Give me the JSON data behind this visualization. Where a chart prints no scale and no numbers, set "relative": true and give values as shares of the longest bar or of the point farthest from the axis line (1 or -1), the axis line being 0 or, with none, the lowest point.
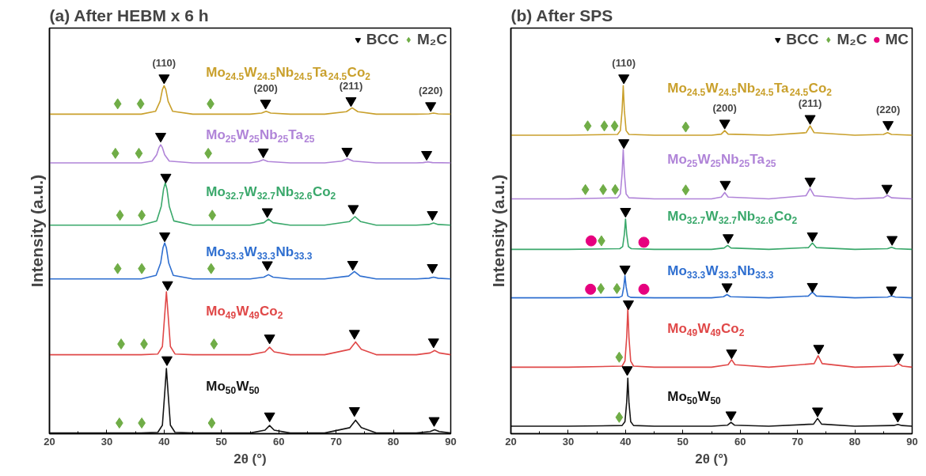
{
  "chart_data": [
    {
      "type": "line",
      "title": "(a) After HEBM x 6 h",
      "xlabel": "2θ (°)",
      "ylabel": "Intensity (a.u.)",
      "xlim": [
        20,
        90
      ],
      "xticks": [
        20,
        30,
        40,
        50,
        60,
        70,
        80,
        90
      ],
      "relative": true,
      "legend": "top right",
      "line_style": "solid",
      "annotations": [
        "(110)",
        "(200)",
        "(211)",
        "(220)"
      ],
      "series": [
        {
          "name": "Mo$_{24.5}$W$_{24.5}$Nb$_{24.5}$Ta$_{24.5}$Co$_{2}$",
          "color": "#c9a02c",
          "x": [
            20,
            30,
            36,
            38.5,
            39.3,
            39.7,
            40,
            40.3,
            40.7,
            41.5,
            45,
            55,
            57,
            57.8,
            58.6,
            62,
            68,
            71.8,
            72.8,
            73.8,
            77,
            84,
            86.2,
            87,
            87.8,
            90
          ],
          "values": [
            0.898,
            0.898,
            0.898,
            0.906,
            0.934,
            0.967,
            0.978,
            0.967,
            0.934,
            0.906,
            0.898,
            0.898,
            0.901,
            0.906,
            0.901,
            0.898,
            0.898,
            0.905,
            0.916,
            0.905,
            0.898,
            0.898,
            0.899,
            0.901,
            0.899,
            0.898
          ]
        },
        {
          "name": "Mo$_{25}$W$_{25}$Nb$_{25}$Ta$_{25}$",
          "color": "#b084d8",
          "x": [
            20,
            30,
            36,
            37.9,
            38.7,
            39.1,
            39.4,
            39.7,
            40.1,
            40.9,
            45,
            55,
            56.5,
            57.3,
            58.1,
            62,
            68,
            71,
            72,
            73,
            77,
            84,
            85.2,
            86,
            86.8,
            90
          ],
          "values": [
            0.761,
            0.761,
            0.761,
            0.766,
            0.784,
            0.804,
            0.812,
            0.804,
            0.784,
            0.766,
            0.761,
            0.761,
            0.765,
            0.77,
            0.765,
            0.761,
            0.761,
            0.766,
            0.773,
            0.766,
            0.761,
            0.761,
            0.762,
            0.764,
            0.762,
            0.761
          ]
        },
        {
          "name": "Mo$_{32.7}$W$_{32.7}$Nb$_{32.6}$Co$_{2}$",
          "color": "#3aa86b",
          "x": [
            20,
            30,
            36,
            38.7,
            39.5,
            39.9,
            40.2,
            40.5,
            40.9,
            41.7,
            45,
            55,
            57.4,
            58.2,
            59,
            62,
            68,
            72.3,
            73.3,
            74.3,
            77,
            84,
            86.2,
            87,
            87.8,
            90
          ],
          "values": [
            0.586,
            0.586,
            0.586,
            0.598,
            0.639,
            0.687,
            0.705,
            0.687,
            0.639,
            0.598,
            0.586,
            0.586,
            0.593,
            0.603,
            0.593,
            0.586,
            0.586,
            0.596,
            0.61,
            0.596,
            0.586,
            0.586,
            0.588,
            0.592,
            0.588,
            0.586
          ]
        },
        {
          "name": "Mo$_{33.3}$W$_{33.3}$Nb$_{33.3}$",
          "color": "#2f6fd0",
          "x": [
            20,
            30,
            36,
            38.6,
            39.4,
            39.8,
            40.1,
            40.4,
            40.8,
            41.6,
            45,
            55,
            57.4,
            58.2,
            59,
            62,
            68,
            72.2,
            73.2,
            74.2,
            77,
            84,
            86.2,
            87,
            87.8,
            90
          ],
          "values": [
            0.435,
            0.435,
            0.435,
            0.445,
            0.48,
            0.522,
            0.536,
            0.522,
            0.48,
            0.445,
            0.435,
            0.435,
            0.44,
            0.447,
            0.44,
            0.435,
            0.435,
            0.443,
            0.456,
            0.443,
            0.435,
            0.435,
            0.437,
            0.44,
            0.437,
            0.435
          ]
        },
        {
          "name": "Mo$_{49}$W$_{49}$Co$_{2}$",
          "color": "#e04848",
          "x": [
            20,
            30,
            36,
            38.9,
            39.7,
            40.1,
            40.4,
            40.7,
            41.1,
            41.9,
            45,
            55,
            57.6,
            58.4,
            59.2,
            62,
            68,
            72.4,
            73.4,
            74.4,
            77,
            84,
            86.4,
            87.2,
            88,
            90
          ],
          "values": [
            0.222,
            0.222,
            0.222,
            0.224,
            0.245,
            0.333,
            0.399,
            0.333,
            0.245,
            0.224,
            0.222,
            0.222,
            0.23,
            0.243,
            0.23,
            0.222,
            0.222,
            0.237,
            0.258,
            0.237,
            0.222,
            0.222,
            0.227,
            0.234,
            0.227,
            0.222
          ]
        },
        {
          "name": "Mo$_{50}$W$_{50}$",
          "color": "#141414",
          "x": [
            20,
            30,
            36,
            38.9,
            39.7,
            40.1,
            40.4,
            40.7,
            41.1,
            41.9,
            45,
            55,
            57.6,
            58.4,
            59.2,
            62,
            68,
            72.4,
            73.4,
            74.4,
            77,
            84,
            86.4,
            87.2,
            88,
            90
          ],
          "values": [
            0.002,
            0.002,
            0.002,
            0.004,
            0.024,
            0.113,
            0.183,
            0.113,
            0.024,
            0.004,
            0.002,
            0.002,
            0.01,
            0.023,
            0.01,
            0.002,
            0.002,
            0.017,
            0.038,
            0.017,
            0.002,
            0.002,
            0.006,
            0.011,
            0.006,
            0.002
          ]
        },
        {
          "type": "scatter",
          "name": "BCC",
          "color": "#000000",
          "marker": "triangle",
          "x": [
            40.0,
            57.7,
            72.6,
            86.5,
            39.4,
            57.3,
            71.9,
            85.8,
            40.3,
            58.0,
            73.0,
            86.8,
            40.1,
            58.0,
            72.9,
            86.8,
            40.6,
            58.4,
            73.2,
            87.0,
            40.5,
            58.4,
            73.2,
            87.1
          ],
          "values": [
            1,
            0.929,
            0.936,
            0.922,
            0.836,
            0.792,
            0.794,
            0.785,
            0.721,
            0.624,
            0.633,
            0.616,
            0.556,
            0.475,
            0.476,
            0.467,
            0.419,
            0.269,
            0.282,
            0.258,
            0.208,
            0.05,
            0.065,
            0.037
          ]
        },
        {
          "type": "scatter",
          "name": "M₂C",
          "color": "#70ad47",
          "marker": "diamond",
          "x": [
            31.9,
            35.9,
            48.1,
            31.5,
            35.6,
            47.7,
            32.3,
            36.1,
            48.4,
            31.9,
            36.1,
            48.2,
            32.5,
            36.5,
            48.7,
            32.2,
            36.1,
            48.3
          ],
          "values": [
            0.927,
            0.927,
            0.927,
            0.788,
            0.788,
            0.788,
            0.614,
            0.614,
            0.614,
            0.464,
            0.464,
            0.464,
            0.252,
            0.252,
            0.252,
            0.03,
            0.03,
            0.03
          ]
        }
      ]
    },
    {
      "type": "line",
      "title": "(b) After SPS",
      "xlabel": "2θ (°)",
      "ylabel": "Intensity (a.u.)",
      "xlim": [
        20,
        90
      ],
      "xticks": [
        20,
        30,
        40,
        50,
        60,
        70,
        80,
        90
      ],
      "relative": true,
      "legend": "top right",
      "line_style": "solid",
      "annotations": [
        "(110)",
        "(200)",
        "(211)",
        "(220)"
      ],
      "series": [
        {
          "name": "Mo$_{24.5}$W$_{24.5}$Nb$_{24.5}$Ta$_{24.5}$Co$_{2}$",
          "color": "#c9a02c",
          "x": [
            20,
            30,
            38.6,
            39.1,
            39.4,
            39.6,
            39.8,
            40.1,
            40.6,
            45,
            55,
            56.7,
            57.3,
            57.9,
            65,
            71.5,
            72.2,
            72.9,
            80,
            85,
            85.7,
            86.4,
            90
          ],
          "values": [
            0.839,
            0.839,
            0.841,
            0.852,
            0.908,
            0.978,
            0.908,
            0.852,
            0.841,
            0.839,
            0.839,
            0.842,
            0.852,
            0.842,
            0.839,
            0.846,
            0.865,
            0.846,
            0.839,
            0.841,
            0.846,
            0.841,
            0.839
          ]
        },
        {
          "name": "Mo$_{25}$W$_{25}$Nb$_{25}$Ta$_{25}$",
          "color": "#b084d8",
          "x": [
            20,
            30,
            38.6,
            39.1,
            39.4,
            39.6,
            39.8,
            40.1,
            40.6,
            45,
            55,
            56.7,
            57.3,
            57.9,
            65,
            71.5,
            72.2,
            72.9,
            80,
            85,
            85.7,
            86.4,
            90
          ],
          "values": [
            0.66,
            0.66,
            0.663,
            0.674,
            0.73,
            0.799,
            0.73,
            0.674,
            0.663,
            0.66,
            0.66,
            0.665,
            0.678,
            0.665,
            0.66,
            0.669,
            0.689,
            0.669,
            0.66,
            0.663,
            0.67,
            0.663,
            0.66
          ]
        },
        {
          "name": "Mo$_{32.7}$W$_{32.7}$Nb$_{32.6}$Co$_{2}$",
          "color": "#3aa86b",
          "x": [
            20,
            30,
            39,
            39.5,
            39.8,
            40,
            40.2,
            40.5,
            41,
            45,
            55,
            57.2,
            57.8,
            58.4,
            65,
            71.9,
            72.6,
            73.3,
            80,
            85.7,
            86.4,
            87.1,
            90
          ],
          "values": [
            0.518,
            0.518,
            0.52,
            0.526,
            0.561,
            0.603,
            0.561,
            0.526,
            0.52,
            0.518,
            0.518,
            0.522,
            0.529,
            0.522,
            0.518,
            0.523,
            0.536,
            0.523,
            0.518,
            0.52,
            0.524,
            0.52,
            0.518
          ]
        },
        {
          "name": "Mo$_{33.3}$W$_{33.3}$Nb$_{33.3}$",
          "color": "#2f6fd0",
          "x": [
            20,
            30,
            38.9,
            39.4,
            39.7,
            39.9,
            40.1,
            40.4,
            40.9,
            45,
            55,
            57.1,
            57.7,
            58.3,
            65,
            71.9,
            72.6,
            73.3,
            80,
            85.7,
            86.4,
            87.1,
            90
          ],
          "values": [
            0.382,
            0.382,
            0.383,
            0.387,
            0.413,
            0.444,
            0.413,
            0.387,
            0.383,
            0.382,
            0.382,
            0.385,
            0.391,
            0.385,
            0.382,
            0.387,
            0.398,
            0.387,
            0.382,
            0.384,
            0.387,
            0.384,
            0.382
          ]
        },
        {
          "name": "Mo$_{49}$W$_{49}$Co$_{2}$",
          "color": "#e04848",
          "x": [
            20,
            30,
            39.4,
            39.9,
            40.2,
            40.4,
            40.6,
            40.9,
            41.4,
            45,
            55,
            57.9,
            58.5,
            59.1,
            65,
            72.9,
            73.6,
            74.3,
            80,
            86.9,
            87.6,
            88.3,
            90
          ],
          "values": [
            0.187,
            0.187,
            0.19,
            0.204,
            0.27,
            0.353,
            0.27,
            0.204,
            0.19,
            0.187,
            0.187,
            0.194,
            0.208,
            0.194,
            0.187,
            0.197,
            0.219,
            0.197,
            0.187,
            0.19,
            0.197,
            0.19,
            0.187
          ]
        },
        {
          "name": "Mo$_{50}$W$_{50}$",
          "color": "#141414",
          "x": [
            20,
            30,
            39.4,
            39.9,
            40.2,
            40.4,
            40.6,
            40.9,
            41.4,
            45,
            55,
            57.8,
            58.4,
            59,
            65,
            72.8,
            73.5,
            74.2,
            80,
            86.8,
            87.5,
            88.2,
            90
          ],
          "values": [
            0.021,
            0.021,
            0.023,
            0.034,
            0.088,
            0.156,
            0.088,
            0.034,
            0.023,
            0.021,
            0.021,
            0.024,
            0.032,
            0.024,
            0.021,
            0.027,
            0.043,
            0.027,
            0.021,
            0.023,
            0.026,
            0.023,
            0.021
          ]
        },
        {
          "type": "scatter",
          "name": "BCC",
          "color": "#000000",
          "marker": "triangle",
          "x": [
            39.7,
            57.3,
            72.2,
            85.8,
            39.7,
            57.4,
            72.2,
            85.6,
            40.0,
            57.9,
            72.6,
            86.5,
            39.9,
            57.7,
            72.6,
            86.4,
            40.5,
            58.5,
            73.7,
            87.6,
            40.3,
            58.4,
            73.5,
            87.5
          ],
          "values": [
            1,
            0.873,
            0.886,
            0.869,
            0.818,
            0.701,
            0.71,
            0.69,
            0.625,
            0.551,
            0.556,
            0.546,
            0.463,
            0.413,
            0.414,
            0.404,
            0.365,
            0.227,
            0.24,
            0.215,
            0.18,
            0.053,
            0.064,
            0.049
          ]
        },
        {
          "type": "scatter",
          "name": "M₂C",
          "color": "#70ad47",
          "marker": "diamond",
          "x": [
            33.4,
            36.3,
            38.1,
            50.5,
            33.0,
            36.1,
            38.2,
            50.5,
            35.8,
            35.7,
            38.5,
            38.9,
            38.9
          ],
          "values": [
            0.865,
            0.865,
            0.865,
            0.862,
            0.686,
            0.686,
            0.686,
            0.685,
            0.542,
            0.408,
            0.408,
            0.215,
            0.046
          ]
        },
        {
          "type": "scatter",
          "name": "MC",
          "color": "#e6007e",
          "marker": "circle",
          "x": [
            34.0,
            43.2,
            33.9,
            43.2
          ],
          "values": [
            0.542,
            0.538,
            0.406,
            0.406
          ]
        }
      ]
    }
  ]
}
